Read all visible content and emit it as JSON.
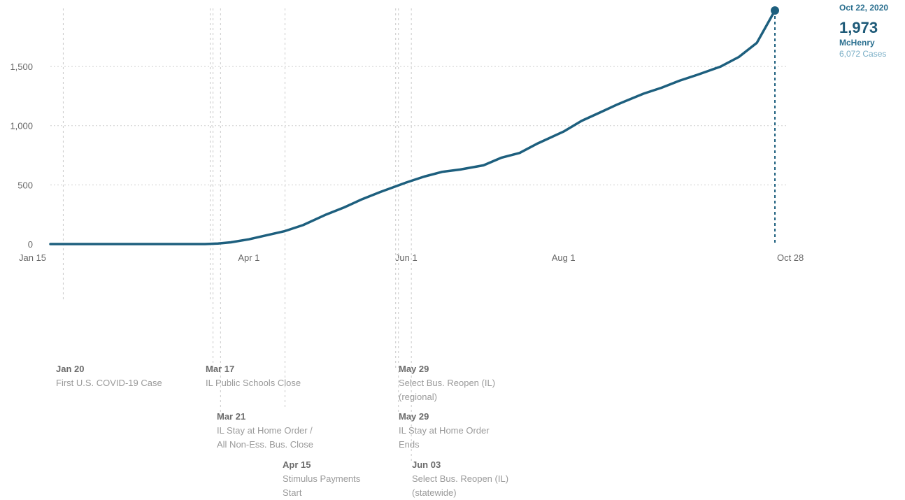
{
  "chart_data": {
    "type": "line",
    "title": "",
    "xlabel": "",
    "ylabel": "",
    "x_ticks": [
      "Jan 15",
      "Apr 1",
      "Jun 1",
      "Aug 1",
      "Oct 28"
    ],
    "y_ticks": [
      "0",
      "500",
      "1,000",
      "1,500"
    ],
    "ylim": [
      0,
      1973
    ],
    "xlim": [
      "2020-01-15",
      "2020-10-22"
    ],
    "grid": true,
    "series": [
      {
        "color": "#1d5f7e",
        "x": [
          "2020-01-15",
          "2020-02-01",
          "2020-02-15",
          "2020-03-01",
          "2020-03-15",
          "2020-03-20",
          "2020-03-25",
          "2020-04-01",
          "2020-04-08",
          "2020-04-15",
          "2020-04-22",
          "2020-05-01",
          "2020-05-08",
          "2020-05-15",
          "2020-05-22",
          "2020-06-01",
          "2020-06-08",
          "2020-06-15",
          "2020-06-22",
          "2020-07-01",
          "2020-07-08",
          "2020-07-15",
          "2020-07-22",
          "2020-08-01",
          "2020-08-08",
          "2020-08-15",
          "2020-08-22",
          "2020-09-01",
          "2020-09-08",
          "2020-09-15",
          "2020-09-22",
          "2020-10-01",
          "2020-10-08",
          "2020-10-15",
          "2020-10-22"
        ],
        "values": [
          0,
          0,
          0,
          0,
          0,
          5,
          15,
          40,
          75,
          110,
          160,
          250,
          310,
          380,
          440,
          520,
          570,
          610,
          630,
          665,
          730,
          770,
          850,
          950,
          1040,
          1110,
          1180,
          1270,
          1320,
          1380,
          1430,
          1500,
          1580,
          1700,
          1973
        ]
      }
    ]
  },
  "events": [
    {
      "date": "Jan 20",
      "lines": [
        "First U.S. COVID-19 Case"
      ]
    },
    {
      "date": "Mar 17",
      "lines": [
        "IL Public Schools Close"
      ]
    },
    {
      "date": "Mar 21",
      "lines": [
        "IL Stay at Home Order /",
        "All Non-Ess. Bus. Close"
      ]
    },
    {
      "date": "Apr 15",
      "lines": [
        "Stimulus Payments",
        "Start"
      ]
    },
    {
      "date": "May 29",
      "lines": [
        "Select Bus. Reopen (IL)",
        "(regional)"
      ]
    },
    {
      "date": "May 29",
      "lines": [
        "IL Stay at Home Order",
        "Ends"
      ]
    },
    {
      "date": "Jun 03",
      "lines": [
        "Select Bus. Reopen (IL)",
        "(statewide)"
      ]
    }
  ],
  "tooltip": {
    "date": "Oct 22, 2020",
    "value": "1,973",
    "county": "McHenry",
    "cases": "6,072 Cases"
  }
}
